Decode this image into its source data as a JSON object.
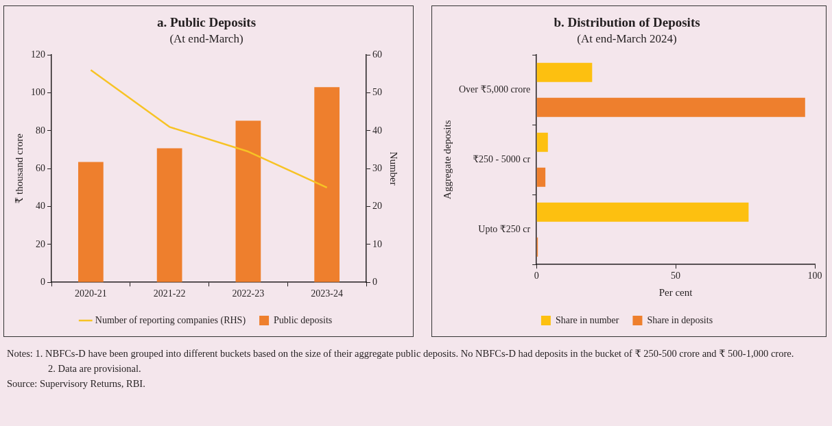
{
  "chart_data": [
    {
      "type": "bar",
      "title": "a. Public Deposits",
      "subtitle": "(At end-March)",
      "ylabel": "₹ thousand crore",
      "y2label": "Number",
      "categories": [
        "2020-21",
        "2021-22",
        "2022-23",
        "2023-24"
      ],
      "series": [
        {
          "name": "Public deposits",
          "color": "#ee7f2d",
          "values": [
            63.5,
            70.7,
            85.3,
            103
          ]
        },
        {
          "name": "Number of reporting companies (RHS)",
          "type": "line",
          "axis": "y2",
          "marker": "none",
          "color": "#f7c325",
          "values": [
            56,
            41,
            34.5,
            25
          ]
        }
      ],
      "ylim": [
        0,
        120
      ],
      "yticks": [
        0,
        20,
        40,
        60,
        80,
        100,
        120
      ],
      "y2lim": [
        0,
        60
      ],
      "y2ticks": [
        0,
        10,
        20,
        30,
        40,
        50,
        60
      ],
      "grid": false,
      "legend": "bottom"
    },
    {
      "type": "bar",
      "orientation": "horizontal",
      "title": "b. Distribution of Deposits",
      "subtitle": "(At end-March 2024)",
      "ylabel": "Aggregate deposits",
      "xlabel": "Per cent",
      "categories": [
        "Over ₹5,000 crore",
        "₹250 - 5000 cr",
        "Upto ₹250 cr"
      ],
      "series": [
        {
          "name": "Share in number",
          "color": "#fdc010",
          "values": [
            20,
            4.1,
            76.2
          ]
        },
        {
          "name": "Share in deposits",
          "color": "#ee7f2d",
          "values": [
            96.5,
            3.2,
            0.5
          ]
        }
      ],
      "xlim": [
        0,
        100
      ],
      "xticks": [
        0,
        50,
        100
      ],
      "grid": false,
      "legend": "bottom",
      "annotations": [
        "Notes: 1. NBFCs-D have been grouped into different buckets based on the size of their aggregate public deposits. No NBFCs-D had deposits in the bucket of ₹ 250-500 crore and ₹ 500-1,000 crore.",
        "2. Data are provisional.",
        "Source: Supervisory Returns, RBI."
      ]
    }
  ]
}
